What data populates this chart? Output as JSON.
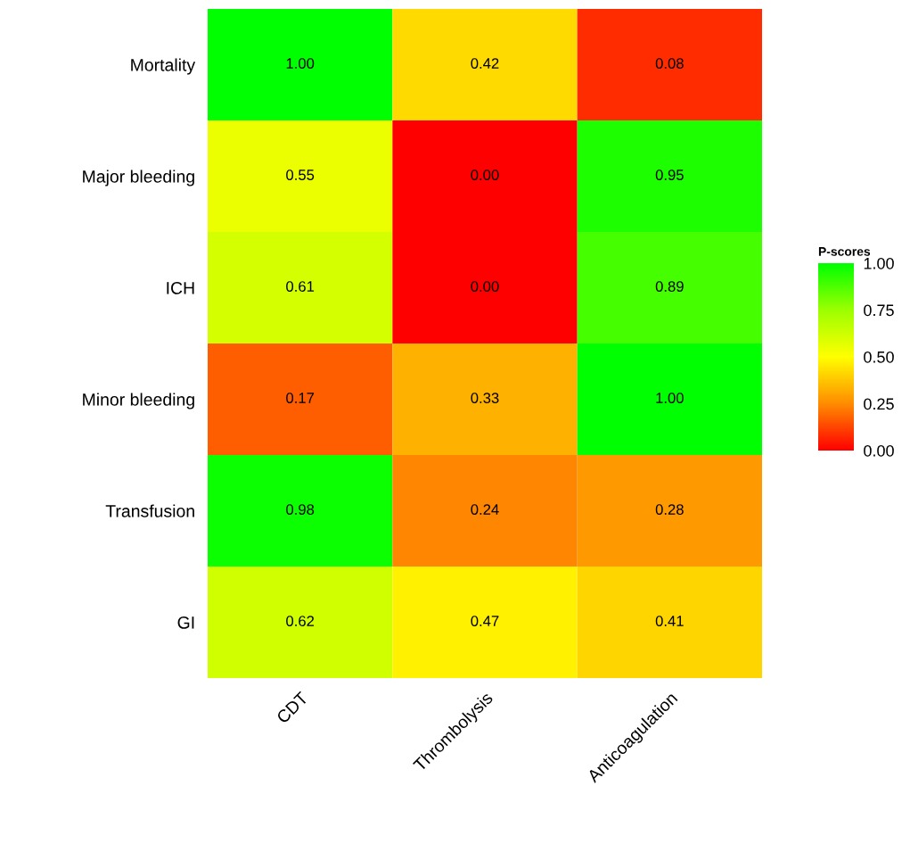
{
  "chart_data": {
    "type": "heatmap",
    "categories": [
      "CDT",
      "Thrombolysis",
      "Anticoagulation"
    ],
    "y_categories": [
      "Mortality",
      "Major bleeding",
      "ICH",
      "Minor bleeding",
      "Transfusion",
      "GI"
    ],
    "cells": [
      [
        1.0,
        0.42,
        0.08
      ],
      [
        0.55,
        0.0,
        0.95
      ],
      [
        0.61,
        0.0,
        0.89
      ],
      [
        0.17,
        0.33,
        1.0
      ],
      [
        0.98,
        0.24,
        0.28
      ],
      [
        0.62,
        0.47,
        0.41
      ]
    ],
    "cell_labels": [
      [
        "1.00",
        "0.42",
        "0.08"
      ],
      [
        "0.55",
        "0.00",
        "0.95"
      ],
      [
        "0.61",
        "0.00",
        "0.89"
      ],
      [
        "0.17",
        "0.33",
        "1.00"
      ],
      [
        "0.98",
        "0.24",
        "0.28"
      ],
      [
        "0.62",
        "0.47",
        "0.41"
      ]
    ],
    "colors": [
      "#ff0000",
      "#ff8c00",
      "#ffff00",
      "#9cff00",
      "#00ff00"
    ],
    "clabel": "P-scores",
    "clim": [
      0,
      1
    ],
    "cticks": [
      {
        "value": 0,
        "label": "0.00"
      },
      {
        "value": 0.25,
        "label": "0.25"
      },
      {
        "value": 0.5,
        "label": "0.50"
      },
      {
        "value": 0.75,
        "label": "0.75"
      },
      {
        "value": 1,
        "label": "1.00"
      }
    ],
    "grid": false
  }
}
